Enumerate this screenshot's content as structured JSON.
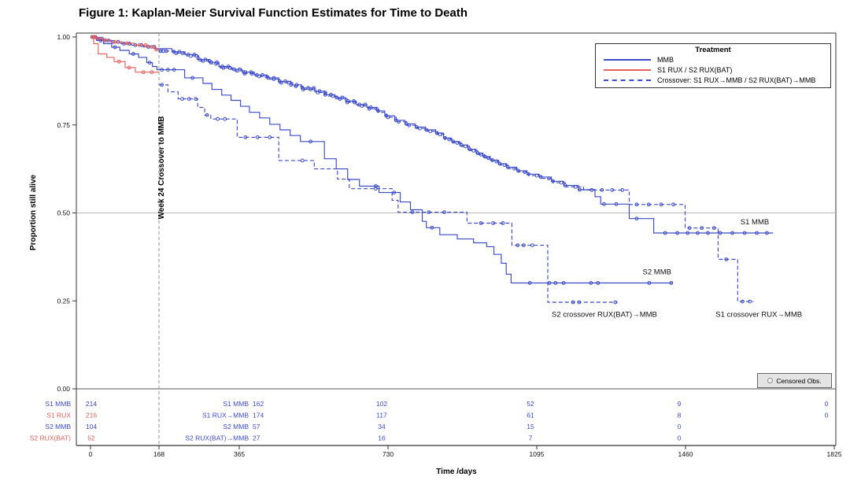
{
  "figure_title": "Figure 1: Kaplan-Meier Survival Function Estimates for Time to Death",
  "colors": {
    "blue": "#3b4bc8",
    "red": "#e4605c",
    "axis": "#333333",
    "zero_line": "#555555",
    "ref_line_h": "#b8b8b8",
    "ref_line_v": "#909090",
    "text": "#000000",
    "censor_box_bg": "#e4e4e4"
  },
  "chart_data": {
    "type": "line",
    "subtype": "kaplan-meier-step",
    "title": "Figure 1: Kaplan-Meier Survival Function Estimates for Time to Death",
    "xlabel": "Time /days",
    "ylabel": "Proportion still alive",
    "xlim": [
      0,
      1825
    ],
    "ylim": [
      0.0,
      1.0
    ],
    "xticks": [
      0,
      168,
      365,
      730,
      1095,
      1460,
      1825
    ],
    "yticks": [
      0.0,
      0.25,
      0.5,
      0.75,
      1.0
    ],
    "grid": false,
    "reference_lines": {
      "h_value": 0.5,
      "v_value": 168,
      "v_label": "Week 24 Crossover to MMB"
    },
    "legend": {
      "title": "Treatment",
      "position": "top-right",
      "entries": [
        {
          "label": "MMB",
          "color": "blue",
          "style": "solid"
        },
        {
          "label": "S1 RUX / S2 RUX(BAT)",
          "color": "red",
          "style": "solid"
        },
        {
          "label": "Crossover: S1 RUX→MMB / S2 RUX(BAT)→MMB",
          "color": "blue",
          "style": "dashed"
        }
      ]
    },
    "censored_legend": "Censored Obs.",
    "series": [
      {
        "name": "S1 crossover RUX→MMB",
        "color": "blue",
        "style": "dashed",
        "points": [
          [
            168,
            0.96
          ],
          [
            205,
            0.954
          ],
          [
            236,
            0.946
          ],
          [
            266,
            0.932
          ],
          [
            293,
            0.924
          ],
          [
            318,
            0.912
          ],
          [
            348,
            0.904
          ],
          [
            376,
            0.896
          ],
          [
            406,
            0.888
          ],
          [
            436,
            0.88
          ],
          [
            466,
            0.87
          ],
          [
            496,
            0.86
          ],
          [
            521,
            0.851
          ],
          [
            553,
            0.842
          ],
          [
            579,
            0.832
          ],
          [
            604,
            0.824
          ],
          [
            630,
            0.814
          ],
          [
            656,
            0.804
          ],
          [
            682,
            0.796
          ],
          [
            706,
            0.786
          ],
          [
            726,
            0.772
          ],
          [
            750,
            0.759
          ],
          [
            776,
            0.749
          ],
          [
            801,
            0.74
          ],
          [
            826,
            0.732
          ],
          [
            851,
            0.723
          ],
          [
            870,
            0.709
          ],
          [
            890,
            0.699
          ],
          [
            910,
            0.689
          ],
          [
            930,
            0.677
          ],
          [
            950,
            0.666
          ],
          [
            967,
            0.656
          ],
          [
            985,
            0.646
          ],
          [
            1005,
            0.636
          ],
          [
            1025,
            0.626
          ],
          [
            1050,
            0.616
          ],
          [
            1075,
            0.606
          ],
          [
            1105,
            0.598
          ],
          [
            1135,
            0.586
          ],
          [
            1165,
            0.574
          ],
          [
            1210,
            0.565
          ],
          [
            1322,
            0.524
          ],
          [
            1459,
            0.457
          ],
          [
            1540,
            0.368
          ],
          [
            1588,
            0.248
          ],
          [
            1627,
            0.248
          ]
        ],
        "censor_days": [
          172,
          178,
          186,
          210,
          226,
          246,
          260,
          276,
          292,
          308,
          326,
          342,
          360,
          378,
          396,
          414,
          432,
          450,
          468,
          486,
          504,
          522,
          540,
          558,
          576,
          594,
          612,
          630,
          648,
          666,
          684,
          702,
          730,
          756,
          782,
          808,
          834,
          858,
          880,
          900,
          920,
          940,
          958,
          976,
          996,
          1016,
          1040,
          1065,
          1095,
          1125,
          1155,
          1190,
          1230,
          1255,
          1280,
          1305,
          1340,
          1370,
          1400,
          1430,
          1470,
          1500,
          1530,
          1560,
          1600,
          1618
        ]
      },
      {
        "name": "S2 crossover RUX(BAT)→MMB",
        "color": "blue",
        "style": "dashed",
        "points": [
          [
            168,
            0.864
          ],
          [
            190,
            0.844
          ],
          [
            215,
            0.824
          ],
          [
            263,
            0.8
          ],
          [
            280,
            0.778
          ],
          [
            295,
            0.767
          ],
          [
            360,
            0.715
          ],
          [
            462,
            0.649
          ],
          [
            549,
            0.625
          ],
          [
            606,
            0.596
          ],
          [
            635,
            0.569
          ],
          [
            740,
            0.536
          ],
          [
            755,
            0.502
          ],
          [
            924,
            0.471
          ],
          [
            1034,
            0.408
          ],
          [
            1122,
            0.246
          ],
          [
            1293,
            0.246
          ]
        ],
        "censor_days": [
          175,
          225,
          242,
          258,
          286,
          312,
          330,
          380,
          410,
          440,
          520,
          700,
          790,
          830,
          868,
          958,
          988,
          1012,
          1048,
          1063,
          1084,
          1184,
          1199,
          1288
        ]
      },
      {
        "name": "S1 MMB",
        "color": "blue",
        "style": "solid",
        "points": [
          [
            0,
            1.0
          ],
          [
            15,
            0.995
          ],
          [
            32,
            0.99
          ],
          [
            52,
            0.986
          ],
          [
            75,
            0.981
          ],
          [
            100,
            0.977
          ],
          [
            130,
            0.972
          ],
          [
            160,
            0.967
          ],
          [
            200,
            0.958
          ],
          [
            232,
            0.95
          ],
          [
            262,
            0.936
          ],
          [
            290,
            0.928
          ],
          [
            315,
            0.916
          ],
          [
            345,
            0.908
          ],
          [
            372,
            0.9
          ],
          [
            402,
            0.892
          ],
          [
            432,
            0.884
          ],
          [
            462,
            0.874
          ],
          [
            492,
            0.864
          ],
          [
            518,
            0.855
          ],
          [
            549,
            0.846
          ],
          [
            575,
            0.836
          ],
          [
            600,
            0.828
          ],
          [
            626,
            0.818
          ],
          [
            652,
            0.808
          ],
          [
            678,
            0.8
          ],
          [
            702,
            0.79
          ],
          [
            722,
            0.776
          ],
          [
            746,
            0.763
          ],
          [
            772,
            0.753
          ],
          [
            797,
            0.744
          ],
          [
            822,
            0.736
          ],
          [
            847,
            0.727
          ],
          [
            866,
            0.713
          ],
          [
            886,
            0.703
          ],
          [
            906,
            0.693
          ],
          [
            926,
            0.681
          ],
          [
            946,
            0.67
          ],
          [
            963,
            0.66
          ],
          [
            981,
            0.65
          ],
          [
            1001,
            0.64
          ],
          [
            1021,
            0.63
          ],
          [
            1046,
            0.62
          ],
          [
            1071,
            0.61
          ],
          [
            1101,
            0.602
          ],
          [
            1131,
            0.59
          ],
          [
            1161,
            0.578
          ],
          [
            1197,
            0.566
          ],
          [
            1238,
            0.546
          ],
          [
            1252,
            0.525
          ],
          [
            1322,
            0.484
          ],
          [
            1382,
            0.443
          ],
          [
            1675,
            0.443
          ]
        ],
        "censor_days": [
          4,
          8,
          12,
          17,
          22,
          28,
          36,
          44,
          55,
          68,
          82,
          95,
          110,
          125,
          142,
          156,
          205,
          218,
          240,
          255,
          268,
          282,
          296,
          310,
          324,
          338,
          352,
          366,
          380,
          394,
          408,
          422,
          436,
          450,
          464,
          478,
          492,
          506,
          520,
          534,
          548,
          562,
          576,
          590,
          604,
          618,
          632,
          646,
          660,
          674,
          688,
          706,
          726,
          750,
          775,
          800,
          824,
          850,
          870,
          890,
          910,
          930,
          950,
          968,
          986,
          1004,
          1024,
          1050,
          1075,
          1105,
          1135,
          1165,
          1200,
          1260,
          1290,
          1340,
          1410,
          1440,
          1465,
          1490,
          1515,
          1545,
          1575,
          1605,
          1635,
          1660
        ]
      },
      {
        "name": "S2 MMB",
        "color": "blue",
        "style": "solid",
        "points": [
          [
            0,
            1.0
          ],
          [
            15,
            0.99
          ],
          [
            32,
            0.981
          ],
          [
            52,
            0.971
          ],
          [
            72,
            0.962
          ],
          [
            95,
            0.952
          ],
          [
            118,
            0.942
          ],
          [
            138,
            0.927
          ],
          [
            152,
            0.916
          ],
          [
            163,
            0.907
          ],
          [
            231,
            0.884
          ],
          [
            276,
            0.868
          ],
          [
            298,
            0.851
          ],
          [
            322,
            0.835
          ],
          [
            345,
            0.82
          ],
          [
            368,
            0.803
          ],
          [
            390,
            0.786
          ],
          [
            415,
            0.77
          ],
          [
            440,
            0.752
          ],
          [
            465,
            0.736
          ],
          [
            490,
            0.72
          ],
          [
            515,
            0.703
          ],
          [
            574,
            0.654
          ],
          [
            603,
            0.625
          ],
          [
            631,
            0.595
          ],
          [
            660,
            0.576
          ],
          [
            708,
            0.558
          ],
          [
            760,
            0.531
          ],
          [
            785,
            0.509
          ],
          [
            814,
            0.476
          ],
          [
            824,
            0.458
          ],
          [
            857,
            0.438
          ],
          [
            900,
            0.426
          ],
          [
            940,
            0.415
          ],
          [
            972,
            0.404
          ],
          [
            990,
            0.382
          ],
          [
            1008,
            0.357
          ],
          [
            1020,
            0.326
          ],
          [
            1032,
            0.301
          ],
          [
            1428,
            0.301
          ]
        ],
        "censor_days": [
          25,
          60,
          105,
          145,
          175,
          190,
          205,
          250,
          540,
          700,
          745,
          838,
          1078,
          1126,
          1141,
          1161,
          1228,
          1245,
          1371,
          1425
        ]
      },
      {
        "name": "S1 RUX",
        "color": "red",
        "style": "solid",
        "points": [
          [
            0,
            1.0
          ],
          [
            14,
            0.995
          ],
          [
            30,
            0.991
          ],
          [
            50,
            0.986
          ],
          [
            78,
            0.982
          ],
          [
            108,
            0.977
          ],
          [
            140,
            0.972
          ],
          [
            158,
            0.964
          ],
          [
            168,
            0.964
          ]
        ],
        "censor_days": [
          6,
          10,
          20,
          36,
          60,
          90,
          120,
          135,
          150,
          162
        ]
      },
      {
        "name": "S2 RUX(BAT)",
        "color": "red",
        "style": "solid",
        "points": [
          [
            0,
            1.0
          ],
          [
            8,
            0.981
          ],
          [
            19,
            0.952
          ],
          [
            40,
            0.942
          ],
          [
            58,
            0.93
          ],
          [
            85,
            0.913
          ],
          [
            110,
            0.9
          ],
          [
            168,
            0.9
          ]
        ],
        "censor_days": [
          5,
          70,
          95,
          130,
          150
        ]
      }
    ],
    "annotations": [
      {
        "text": "S1 MMB",
        "day": 1630,
        "p": 0.468
      },
      {
        "text": "S2 MMB",
        "day": 1390,
        "p": 0.325
      },
      {
        "text": "S2 crossover RUX(BAT)→MMB",
        "day": 1261,
        "p": 0.205
      },
      {
        "text": "S1 crossover RUX→MMB",
        "day": 1640,
        "p": 0.205
      }
    ],
    "at_risk": {
      "tick_days": [
        0,
        365,
        730,
        1095,
        1460,
        1825
      ],
      "rows": [
        {
          "label": "S1 MMB",
          "color": "blue",
          "n0": "214",
          "label2": "S1 MMB",
          "values": [
            "162",
            "102",
            "52",
            "9",
            "0"
          ]
        },
        {
          "label": "S1 RUX",
          "color": "red",
          "n0": "216",
          "label2": "S1 RUX→MMB",
          "values": [
            "174",
            "117",
            "61",
            "8",
            "0"
          ]
        },
        {
          "label": "S2 MMB",
          "color": "blue",
          "n0": "104",
          "label2": "S2 MMB",
          "values": [
            "57",
            "34",
            "15",
            "0",
            ""
          ]
        },
        {
          "label": "S2 RUX(BAT)",
          "color": "red",
          "n0": "52",
          "label2": "S2 RUX(BAT)→MMB",
          "values": [
            "27",
            "16",
            "7",
            "0",
            ""
          ]
        }
      ]
    }
  }
}
